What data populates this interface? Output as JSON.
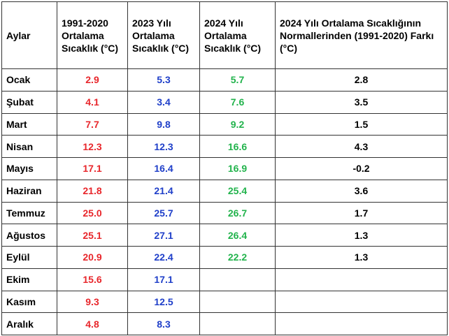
{
  "table": {
    "headers": [
      "Aylar",
      "1991-2020 Ortalama Sıcaklık (°C)",
      "2023 Yılı Ortalama Sıcaklık (°C)",
      "2024 Yılı Ortalama Sıcaklık (°C)",
      "2024 Yılı Ortalama Sıcaklığının Normallerinden (1991-2020) Farkı (°C)"
    ],
    "rows": [
      {
        "month": "Ocak",
        "normal": "2.9",
        "y2023": "5.3",
        "y2024": "5.7",
        "diff": "2.8"
      },
      {
        "month": "Şubat",
        "normal": "4.1",
        "y2023": "3.4",
        "y2024": "7.6",
        "diff": "3.5"
      },
      {
        "month": "Mart",
        "normal": "7.7",
        "y2023": "9.8",
        "y2024": "9.2",
        "diff": "1.5"
      },
      {
        "month": "Nisan",
        "normal": "12.3",
        "y2023": "12.3",
        "y2024": "16.6",
        "diff": "4.3"
      },
      {
        "month": "Mayıs",
        "normal": "17.1",
        "y2023": "16.4",
        "y2024": "16.9",
        "diff": "-0.2"
      },
      {
        "month": "Haziran",
        "normal": "21.8",
        "y2023": "21.4",
        "y2024": "25.4",
        "diff": "3.6"
      },
      {
        "month": "Temmuz",
        "normal": "25.0",
        "y2023": "25.7",
        "y2024": "26.7",
        "diff": "1.7"
      },
      {
        "month": "Ağustos",
        "normal": "25.1",
        "y2023": "27.1",
        "y2024": "26.4",
        "diff": "1.3"
      },
      {
        "month": "Eylül",
        "normal": "20.9",
        "y2023": "22.4",
        "y2024": "22.2",
        "diff": "1.3"
      },
      {
        "month": "Ekim",
        "normal": "15.6",
        "y2023": "17.1",
        "y2024": "",
        "diff": ""
      },
      {
        "month": "Kasım",
        "normal": "9.3",
        "y2023": "12.5",
        "y2024": "",
        "diff": ""
      },
      {
        "month": "Aralık",
        "normal": "4.8",
        "y2023": "8.3",
        "y2024": "",
        "diff": ""
      }
    ]
  },
  "colors": {
    "normal": "#e8262b",
    "y2023": "#1f3fc9",
    "y2024": "#22b34c",
    "diff": "#000000"
  }
}
